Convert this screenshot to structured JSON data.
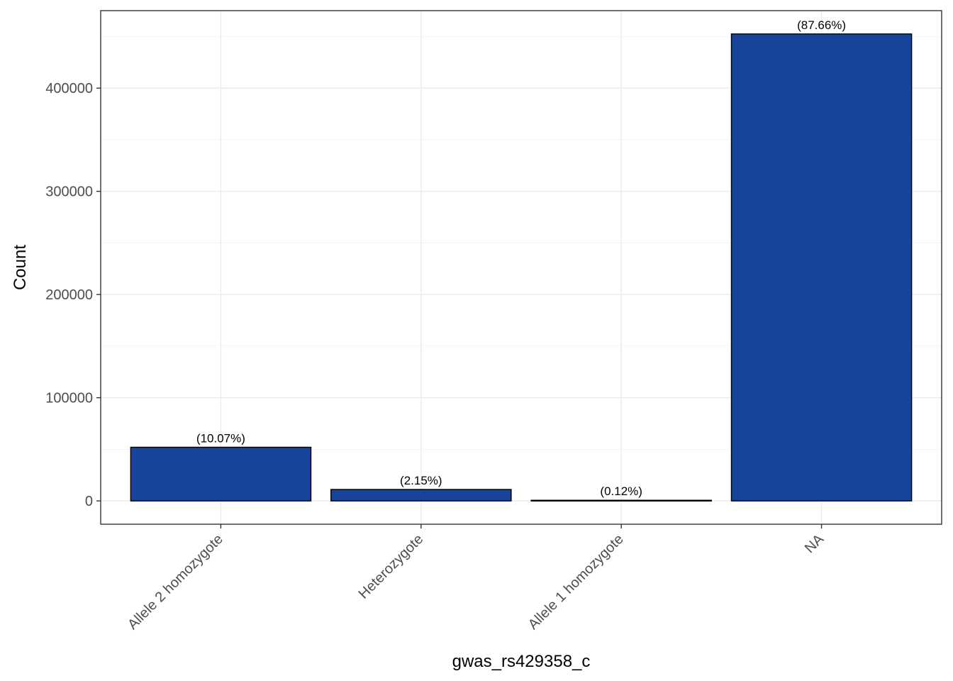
{
  "chart_data": {
    "type": "bar",
    "categories": [
      "Allele 2 homozygote",
      "Heterozygote",
      "Allele 1 homozygote",
      "NA"
    ],
    "values": [
      52000,
      11100,
      620,
      452500
    ],
    "data_labels": [
      "(10.07%)",
      "(2.15%)",
      "(0.12%)",
      "(87.66%)"
    ],
    "title": "",
    "xlabel": "gwas_rs429358_c",
    "ylabel": "Count",
    "ylim": [
      -22600,
      475100
    ],
    "yticks": [
      0,
      100000,
      200000,
      300000,
      400000
    ],
    "ytick_labels": [
      "0",
      "100000",
      "200000",
      "300000",
      "400000"
    ],
    "grid": true,
    "legend": "none",
    "bar_color": "#17439a",
    "bar_outline_color": "#000000"
  }
}
